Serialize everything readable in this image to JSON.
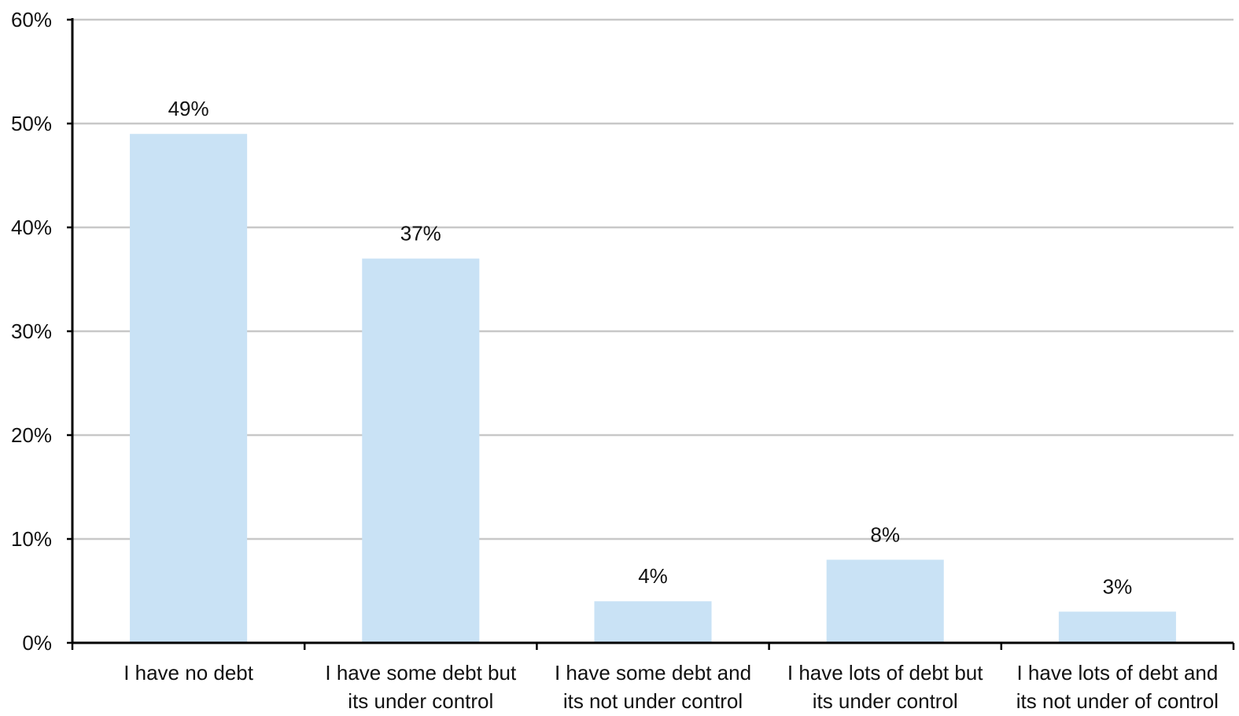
{
  "chart_data": {
    "type": "bar",
    "categories": [
      [
        "I have no debt"
      ],
      [
        "I have some debt but",
        "its under control"
      ],
      [
        "I have some debt and",
        "its not under control"
      ],
      [
        "I have lots of debt but",
        "its under control"
      ],
      [
        "I have lots of debt and",
        "its not under of control"
      ]
    ],
    "values": [
      49,
      37,
      4,
      8,
      3
    ],
    "data_labels": [
      "49%",
      "37%",
      "4%",
      "8%",
      "3%"
    ],
    "y_ticks": [
      "0%",
      "10%",
      "20%",
      "30%",
      "40%",
      "50%",
      "60%"
    ],
    "ylim": [
      0,
      60
    ],
    "title": "",
    "xlabel": "",
    "ylabel": "",
    "grid": true,
    "legend": "none",
    "colors": {
      "bar": "#c9e2f5",
      "grid": "#c8c8c8",
      "axis": "#000000",
      "text": "#111111"
    }
  }
}
